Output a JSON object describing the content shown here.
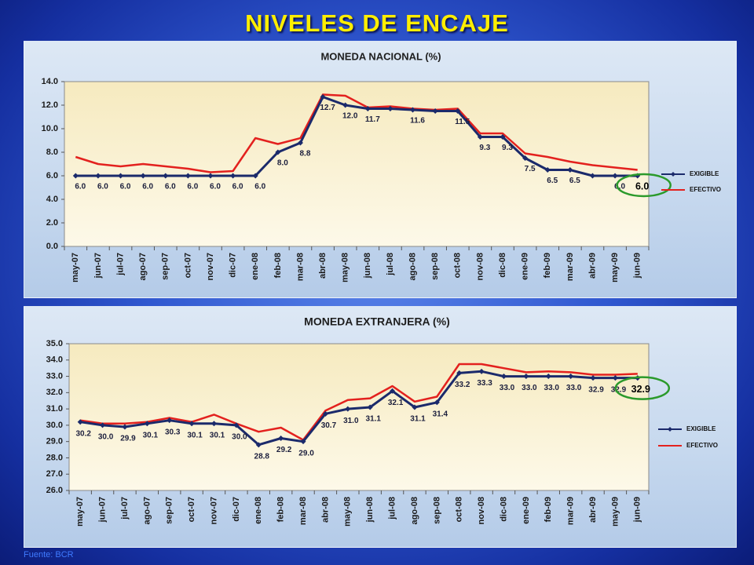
{
  "slide": {
    "title": "NIVELES DE ENCAJE",
    "source": "Fuente: BCR"
  },
  "colors": {
    "slide_title": "#ffee00",
    "source_text": "#3f7bff",
    "highlight_ring": "#2b9a2b"
  },
  "chart_data": [
    {
      "type": "line",
      "title": "MONEDA NACIONAL (%)",
      "categories": [
        "may-07",
        "jun-07",
        "jul-07",
        "ago-07",
        "sep-07",
        "oct-07",
        "nov-07",
        "dic-07",
        "ene-08",
        "feb-08",
        "mar-08",
        "abr-08",
        "may-08",
        "jun-08",
        "jul-08",
        "ago-08",
        "sep-08",
        "oct-08",
        "nov-08",
        "dic-08",
        "ene-09",
        "feb-09",
        "mar-09",
        "abr-09",
        "may-09",
        "jun-09"
      ],
      "ylim": [
        0,
        14
      ],
      "yticks": [
        "0.0",
        "2.0",
        "4.0",
        "6.0",
        "8.0",
        "10.0",
        "12.0",
        "14.0"
      ],
      "grid": false,
      "legend": "right",
      "highlighted_category": "jun-09",
      "series": [
        {
          "name": "EXIGIBLE",
          "color": "#1b2a6b",
          "marker": "diamond",
          "values": [
            6.0,
            6.0,
            6.0,
            6.0,
            6.0,
            6.0,
            6.0,
            6.0,
            6.0,
            8.0,
            8.8,
            12.7,
            12.0,
            11.7,
            11.7,
            11.6,
            11.5,
            11.5,
            9.3,
            9.3,
            7.5,
            6.5,
            6.5,
            6.0,
            6.0,
            6.0
          ],
          "data_labels": [
            "6.0",
            "6.0",
            "6.0",
            "6.0",
            "6.0",
            "6.0",
            "6.0",
            "6.0",
            "6.0",
            "8.0",
            "8.8",
            "12.7",
            "12.0",
            "11.7",
            null,
            "11.6",
            null,
            "11.5",
            "9.3",
            "9.3",
            "7.5",
            "6.5",
            "6.5",
            null,
            "6.0",
            "6.0"
          ]
        },
        {
          "name": "EFECTIVO",
          "color": "#e3211e",
          "values": [
            7.6,
            7.0,
            6.8,
            7.0,
            6.8,
            6.6,
            6.3,
            6.4,
            9.2,
            8.7,
            9.2,
            12.9,
            12.8,
            11.8,
            11.9,
            11.7,
            11.6,
            11.7,
            9.6,
            9.6,
            7.9,
            7.6,
            7.2,
            6.9,
            6.7,
            6.5
          ]
        }
      ]
    },
    {
      "type": "line",
      "title": "MONEDA EXTRANJERA (%)",
      "categories": [
        "may-07",
        "jun-07",
        "jul-07",
        "ago-07",
        "sep-07",
        "oct-07",
        "nov-07",
        "dic-07",
        "ene-08",
        "feb-08",
        "mar-08",
        "abr-08",
        "may-08",
        "jun-08",
        "jul-08",
        "ago-08",
        "sep-08",
        "oct-08",
        "nov-08",
        "dic-08",
        "ene-09",
        "feb-09",
        "mar-09",
        "abr-09",
        "may-09",
        "jun-09"
      ],
      "ylim": [
        26,
        35
      ],
      "yticks": [
        "26.0",
        "27.0",
        "28.0",
        "29.0",
        "30.0",
        "31.0",
        "32.0",
        "33.0",
        "34.0",
        "35.0"
      ],
      "grid": false,
      "legend": "right",
      "highlighted_category": "jun-09",
      "series": [
        {
          "name": "EXIGIBLE",
          "color": "#1b2a6b",
          "marker": "diamond",
          "values": [
            30.2,
            30.0,
            29.9,
            30.1,
            30.3,
            30.1,
            30.1,
            30.0,
            28.8,
            29.2,
            29.0,
            30.7,
            31.0,
            31.1,
            32.1,
            31.1,
            31.4,
            33.2,
            33.3,
            33.0,
            33.0,
            33.0,
            33.0,
            32.9,
            32.9,
            32.9
          ],
          "data_labels": [
            "30.2",
            "30.0",
            "29.9",
            "30.1",
            "30.3",
            "30.1",
            "30.1",
            "30.0",
            "28.8",
            "29.2",
            "29.0",
            "30.7",
            "31.0",
            "31.1",
            "32.1",
            "31.1",
            "31.4",
            "33.2",
            "33.3",
            "33.0",
            "33.0",
            "33.0",
            "33.0",
            "32.9",
            "32.9",
            "32.9"
          ]
        },
        {
          "name": "EFECTIVO",
          "color": "#e3211e",
          "values": [
            30.3,
            30.1,
            30.1,
            30.2,
            30.45,
            30.2,
            30.65,
            30.1,
            29.6,
            29.85,
            29.1,
            30.9,
            31.55,
            31.65,
            32.4,
            31.45,
            31.75,
            33.75,
            33.75,
            33.5,
            33.25,
            33.3,
            33.25,
            33.1,
            33.1,
            33.15
          ]
        }
      ]
    }
  ]
}
